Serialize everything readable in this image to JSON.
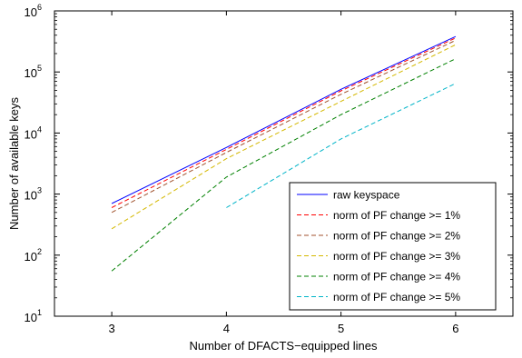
{
  "chart_data": {
    "type": "line",
    "xlabel": "Number of DFACTS−equipped lines",
    "ylabel": "Number of available keys",
    "x_ticks": [
      3,
      4,
      5,
      6
    ],
    "xlim": [
      2.5,
      6.5
    ],
    "y_scale": "log",
    "ylim": [
      10,
      1000000
    ],
    "y_tick_labels": [
      {
        "base": "10",
        "exp": "1",
        "value": 10
      },
      {
        "base": "10",
        "exp": "2",
        "value": 100
      },
      {
        "base": "10",
        "exp": "3",
        "value": 1000
      },
      {
        "base": "10",
        "exp": "4",
        "value": 10000
      },
      {
        "base": "10",
        "exp": "5",
        "value": 100000
      },
      {
        "base": "10",
        "exp": "6",
        "value": 1000000
      }
    ],
    "grid": false,
    "legend_position": "lower-right",
    "series": [
      {
        "name": "raw keyspace",
        "color": "#0000ff",
        "dash": "solid",
        "x": [
          3,
          4,
          5,
          6
        ],
        "y": [
          700,
          5800,
          52000,
          380000
        ]
      },
      {
        "name": "norm of PF change >= 1%",
        "color": "#ff0000",
        "dash": "dashed",
        "x": [
          3,
          4,
          5,
          6
        ],
        "y": [
          600,
          5400,
          49000,
          360000
        ]
      },
      {
        "name": "norm of PF change >= 2%",
        "color": "#a0522d",
        "dash": "dashed",
        "x": [
          3,
          4,
          5,
          6
        ],
        "y": [
          500,
          4800,
          43000,
          330000
        ]
      },
      {
        "name": "norm of PF change >= 3%",
        "color": "#d4b800",
        "dash": "dashed",
        "x": [
          3,
          4,
          5,
          6
        ],
        "y": [
          270,
          3800,
          33000,
          280000
        ]
      },
      {
        "name": "norm of PF change >= 4%",
        "color": "#008000",
        "dash": "dashed",
        "x": [
          3,
          4,
          5,
          6
        ],
        "y": [
          55,
          1900,
          20000,
          165000
        ]
      },
      {
        "name": "norm of PF change >= 5%",
        "color": "#00b4c8",
        "dash": "dashed",
        "x": [
          4,
          5,
          6
        ],
        "y": [
          600,
          8000,
          65000
        ]
      }
    ]
  }
}
